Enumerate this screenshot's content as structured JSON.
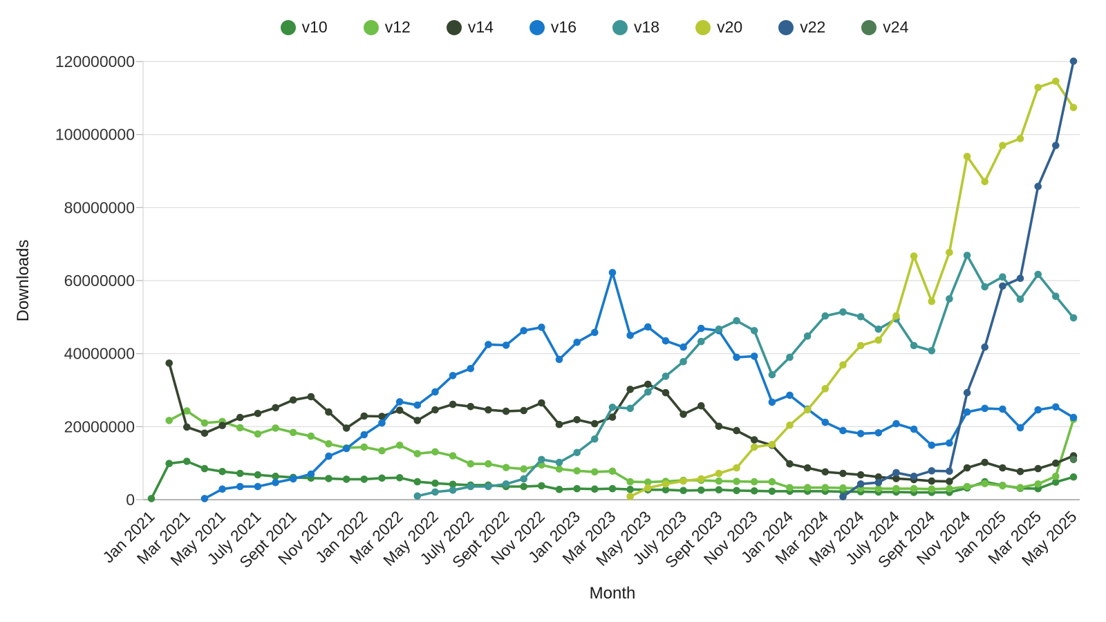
{
  "page": {
    "background": "#ffffff"
  },
  "chart_data": {
    "type": "line",
    "title": "",
    "xlabel": "Month",
    "ylabel": "Downloads",
    "legend_position": "top-center",
    "grid": "horizontal",
    "ylim": [
      0,
      120000000
    ],
    "y_tick_step": 20000000,
    "y_tick_labels": [
      "0",
      "20000000",
      "40000000",
      "60000000",
      "80000000",
      "100000000",
      "120000000"
    ],
    "x_tick_every": 2,
    "value_unit": "downloads",
    "series_value_scale": 1000000,
    "x": [
      "Jan 2021",
      "Feb 2021",
      "Mar 2021",
      "Apr 2021",
      "May 2021",
      "Jun 2021",
      "July 2021",
      "Aug 2021",
      "Sept 2021",
      "Oct 2021",
      "Nov 2021",
      "Dec 2021",
      "Jan 2022",
      "Feb 2022",
      "Mar 2022",
      "Apr 2022",
      "May 2022",
      "Jun 2022",
      "July 2022",
      "Aug 2022",
      "Sept 2022",
      "Oct 2022",
      "Nov 2022",
      "Dec 2022",
      "Jan 2023",
      "Feb 2023",
      "Mar 2023",
      "Apr 2023",
      "May 2023",
      "Jun 2023",
      "July 2023",
      "Aug 2023",
      "Sept 2023",
      "Oct 2023",
      "Nov 2023",
      "Dec 2023",
      "Jan 2024",
      "Feb 2024",
      "Mar 2024",
      "Apr 2024",
      "May 2024",
      "Jun 2024",
      "July 2024",
      "Aug 2024",
      "Sept 2024",
      "Oct 2024",
      "Nov 2024",
      "Dec 2024",
      "Jan 2025",
      "Feb 2025",
      "Mar 2025",
      "Apr 2025",
      "May 2025"
    ],
    "series": [
      {
        "name": "v10",
        "color": "#3a8e3f",
        "values_millions": [
          0.3,
          9.9,
          10.5,
          8.5,
          7.7,
          7.2,
          6.8,
          6.4,
          6.1,
          5.9,
          5.8,
          5.6,
          5.6,
          5.9,
          6.0,
          4.9,
          4.5,
          4.2,
          4.0,
          4.0,
          3.6,
          3.6,
          3.8,
          2.8,
          3.0,
          2.9,
          3.0,
          2.8,
          2.7,
          2.7,
          2.5,
          2.6,
          2.7,
          2.5,
          2.4,
          2.3,
          2.3,
          2.3,
          2.3,
          2.2,
          2.2,
          2.1,
          2.1,
          2.0,
          2.0,
          2.0,
          3.2,
          4.9,
          3.9,
          3.1,
          3.0,
          4.8,
          6.2
        ]
      },
      {
        "name": "v12",
        "color": "#70bf47",
        "values_millions": [
          null,
          21.7,
          24.3,
          21.0,
          21.4,
          19.7,
          18.0,
          19.6,
          18.4,
          17.4,
          15.3,
          14.2,
          14.4,
          13.4,
          14.9,
          12.6,
          13.1,
          12.0,
          9.8,
          9.8,
          8.8,
          8.4,
          9.5,
          8.4,
          7.9,
          7.6,
          7.8,
          4.9,
          4.8,
          5.0,
          5.3,
          5.3,
          5.1,
          5.0,
          4.9,
          4.9,
          3.3,
          3.3,
          3.3,
          3.2,
          3.1,
          3.0,
          3.0,
          3.0,
          2.9,
          3.0,
          3.6,
          4.4,
          3.8,
          3.3,
          4.3,
          6.4,
          22.0
        ]
      },
      {
        "name": "v14",
        "color": "#36452f",
        "values_millions": [
          null,
          37.4,
          19.9,
          18.2,
          20.3,
          22.5,
          23.6,
          25.2,
          27.3,
          28.2,
          24.0,
          19.6,
          22.9,
          22.8,
          24.5,
          21.7,
          24.6,
          26.1,
          25.5,
          24.6,
          24.2,
          24.4,
          26.5,
          20.6,
          21.9,
          20.8,
          22.6,
          30.2,
          31.6,
          29.3,
          23.4,
          25.7,
          20.1,
          18.9,
          16.4,
          14.9,
          9.8,
          8.7,
          7.6,
          7.2,
          6.8,
          6.2,
          5.8,
          5.5,
          5.1,
          5.0,
          8.7,
          10.2,
          8.7,
          7.7,
          8.5,
          10.0,
          12.0
        ]
      },
      {
        "name": "v16",
        "color": "#1879cc",
        "values_millions": [
          null,
          null,
          null,
          0.3,
          2.9,
          3.6,
          3.6,
          4.7,
          5.7,
          7.0,
          11.9,
          14.0,
          17.8,
          21.0,
          26.8,
          25.9,
          29.5,
          34.0,
          35.9,
          42.5,
          42.3,
          46.3,
          47.2,
          38.4,
          43.1,
          45.8,
          62.2,
          45.0,
          47.3,
          43.5,
          41.8,
          46.9,
          46.3,
          39.0,
          39.3,
          26.7,
          28.6,
          24.8,
          21.2,
          18.9,
          18.1,
          18.3,
          20.8,
          19.3,
          14.9,
          15.5,
          24.0,
          25.0,
          24.8,
          19.7,
          24.6,
          25.4,
          22.5
        ]
      },
      {
        "name": "v18",
        "color": "#3d9596",
        "values_millions": [
          null,
          null,
          null,
          null,
          null,
          null,
          null,
          null,
          null,
          null,
          null,
          null,
          null,
          null,
          null,
          1.0,
          2.1,
          2.6,
          3.6,
          3.6,
          4.3,
          5.7,
          11.0,
          10.2,
          12.9,
          16.6,
          25.3,
          25.0,
          29.5,
          33.8,
          37.8,
          43.3,
          46.7,
          49.0,
          46.3,
          34.2,
          39.0,
          44.8,
          50.3,
          51.4,
          50.1,
          46.7,
          49.5,
          42.2,
          40.8,
          55.0,
          66.9,
          58.3,
          61.0,
          54.9,
          61.7,
          55.7,
          49.8
        ]
      },
      {
        "name": "v20",
        "color": "#b8c832",
        "values_millions": [
          null,
          null,
          null,
          null,
          null,
          null,
          null,
          null,
          null,
          null,
          null,
          null,
          null,
          null,
          null,
          null,
          null,
          null,
          null,
          null,
          null,
          null,
          null,
          null,
          null,
          null,
          null,
          0.9,
          3.2,
          4.3,
          5.1,
          5.7,
          7.2,
          8.7,
          14.4,
          15.1,
          20.4,
          24.6,
          30.4,
          36.9,
          42.2,
          43.7,
          50.3,
          66.7,
          54.3,
          67.7,
          94.0,
          87.1,
          97.0,
          98.9,
          112.9,
          114.6,
          107.4
        ]
      },
      {
        "name": "v22",
        "color": "#33618f",
        "values_millions": [
          null,
          null,
          null,
          null,
          null,
          null,
          null,
          null,
          null,
          null,
          null,
          null,
          null,
          null,
          null,
          null,
          null,
          null,
          null,
          null,
          null,
          null,
          null,
          null,
          null,
          null,
          null,
          null,
          null,
          null,
          null,
          null,
          null,
          null,
          null,
          null,
          null,
          null,
          null,
          0.8,
          4.3,
          4.7,
          7.4,
          6.4,
          7.9,
          7.8,
          29.3,
          41.8,
          58.5,
          60.6,
          85.8,
          97.0,
          120.1
        ]
      },
      {
        "name": "v24",
        "color": "#4d7c55",
        "values_millions": [
          null,
          null,
          null,
          null,
          null,
          null,
          null,
          null,
          null,
          null,
          null,
          null,
          null,
          null,
          null,
          null,
          null,
          null,
          null,
          null,
          null,
          null,
          null,
          null,
          null,
          null,
          null,
          null,
          null,
          null,
          null,
          null,
          null,
          null,
          null,
          null,
          null,
          null,
          null,
          null,
          null,
          null,
          null,
          null,
          null,
          null,
          null,
          null,
          null,
          null,
          null,
          null,
          11.0
        ]
      }
    ]
  }
}
